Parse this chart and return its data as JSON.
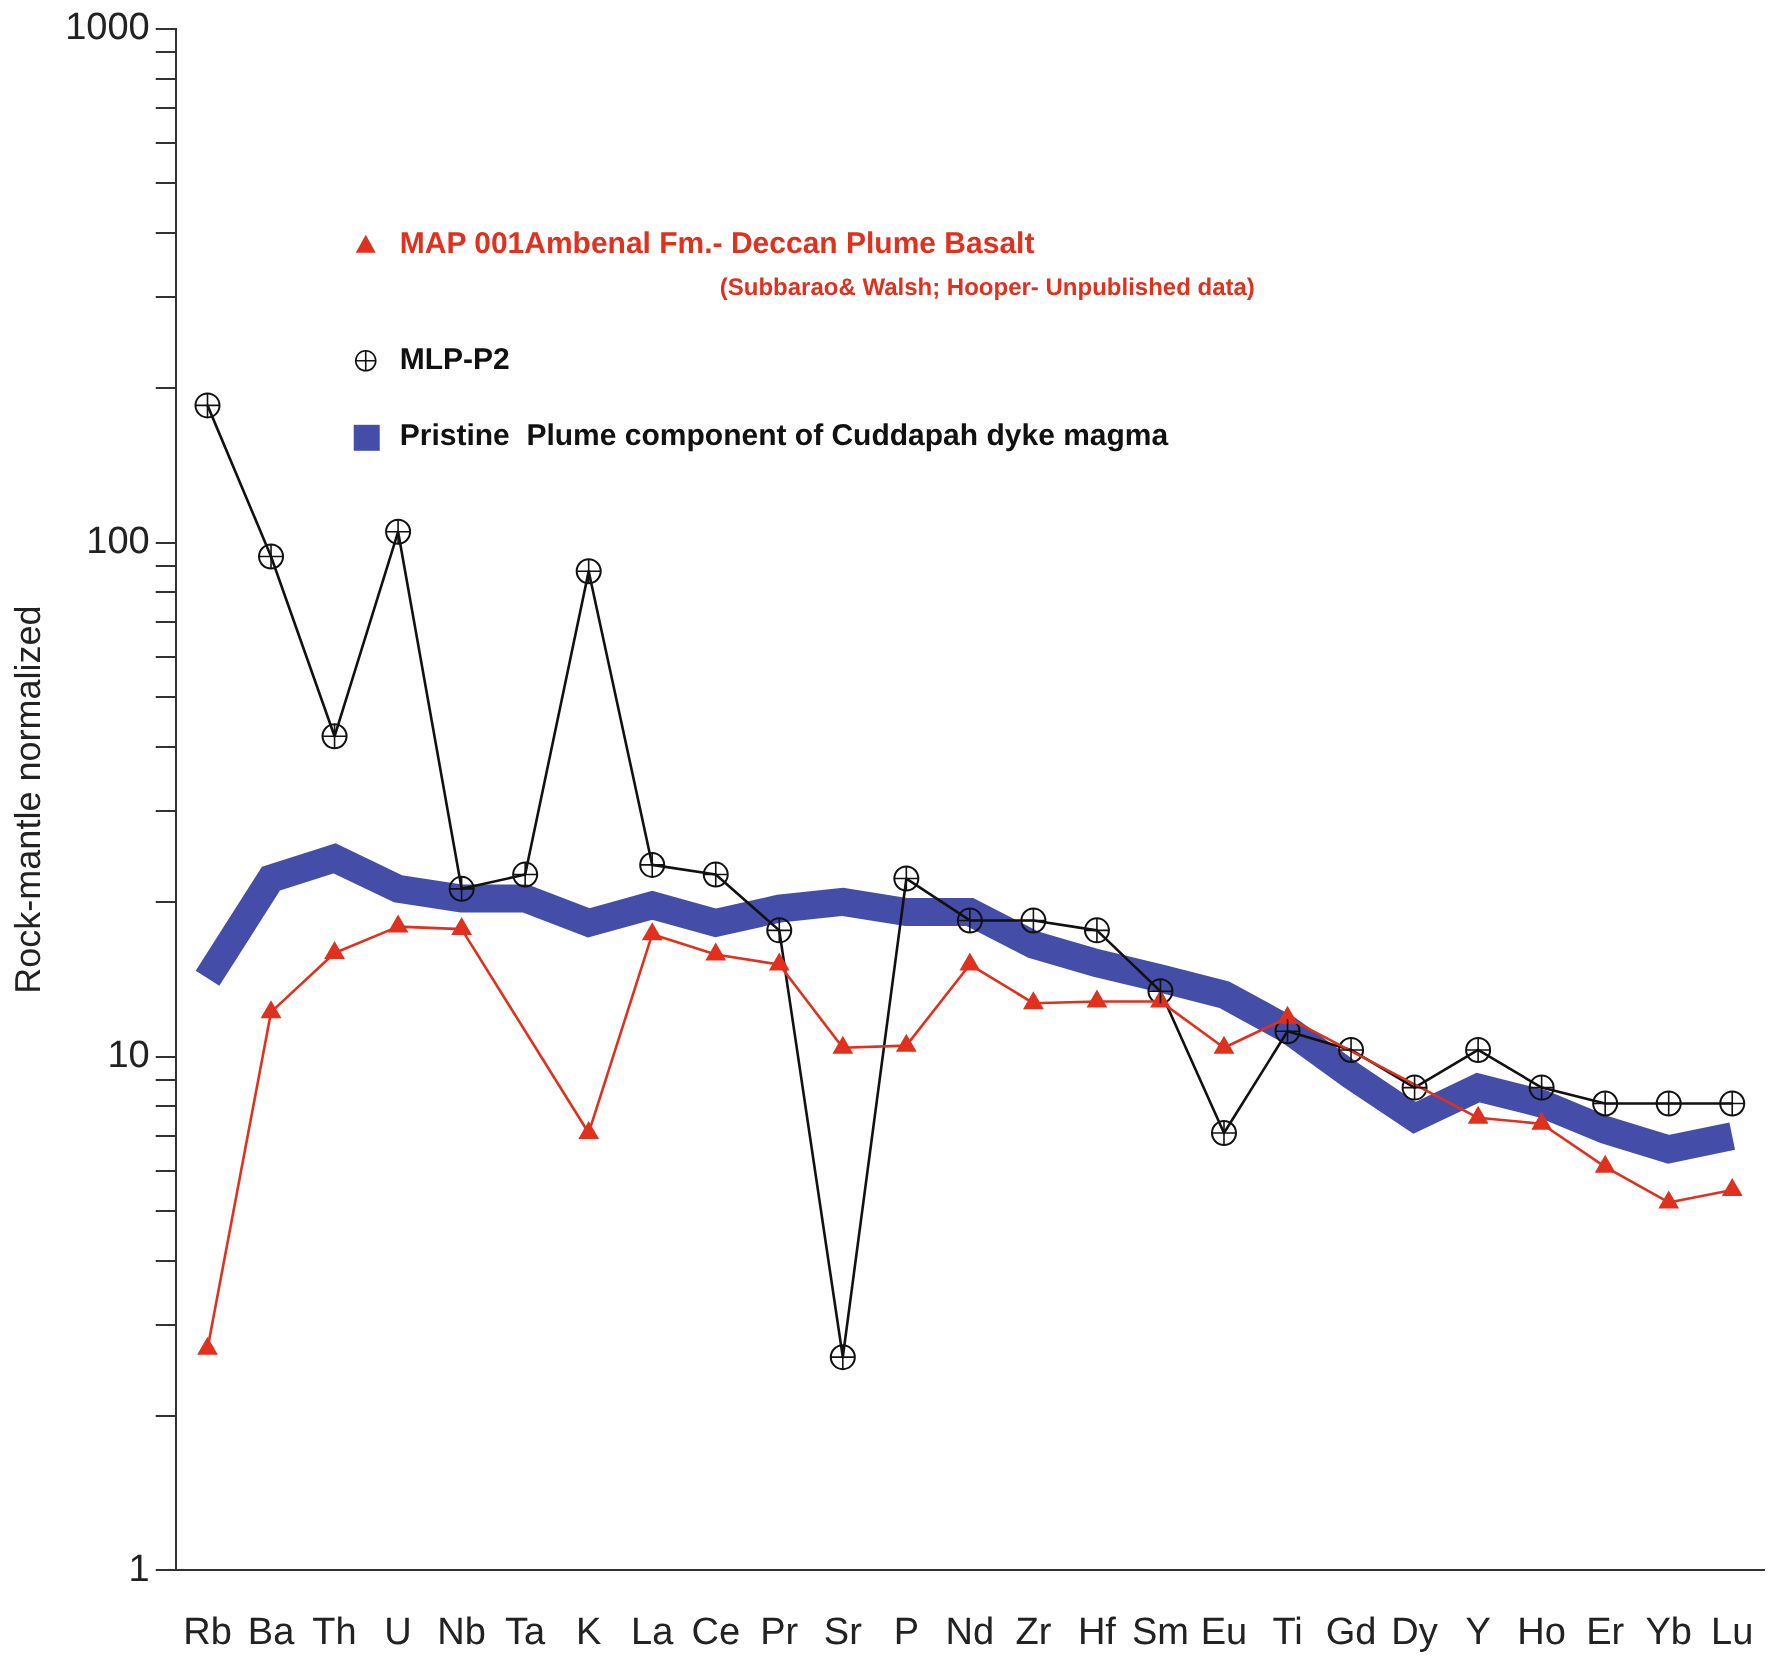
{
  "chart_data": {
    "type": "line",
    "ylabel": "Rock-mantle normalized",
    "log": "y",
    "ylim": [
      1,
      1000
    ],
    "yticks": [
      1,
      {
        "value": 2,
        "label": null
      },
      {
        "value": 3,
        "label": null
      },
      {
        "value": 4,
        "label": null
      },
      {
        "value": 5,
        "label": null
      },
      {
        "value": 6,
        "label": null
      },
      {
        "value": 7,
        "label": null
      },
      {
        "value": 8,
        "label": null
      },
      {
        "value": 9,
        "label": null
      },
      10,
      {
        "value": 20,
        "label": null
      },
      {
        "value": 30,
        "label": null
      },
      {
        "value": 40,
        "label": null
      },
      {
        "value": 50,
        "label": null
      },
      {
        "value": 60,
        "label": null
      },
      {
        "value": 70,
        "label": null
      },
      {
        "value": 80,
        "label": null
      },
      {
        "value": 90,
        "label": null
      },
      100,
      {
        "value": 200,
        "label": null
      },
      {
        "value": 300,
        "label": null
      },
      {
        "value": 400,
        "label": null
      },
      {
        "value": 500,
        "label": null
      },
      {
        "value": 600,
        "label": null
      },
      {
        "value": 700,
        "label": null
      },
      {
        "value": 800,
        "label": null
      },
      {
        "value": 900,
        "label": null
      },
      1000
    ],
    "categories": [
      "Rb",
      "Ba",
      "Th",
      "U",
      "Nb",
      "Ta",
      "K",
      "La",
      "Ce",
      "Pr",
      "Sr",
      "P",
      "Nd",
      "Zr",
      "Hf",
      "Sm",
      "Eu",
      "Ti",
      "Gd",
      "Dy",
      "Y",
      "Ho",
      "Er",
      "Yb",
      "Lu"
    ],
    "legend": "top",
    "grid": false,
    "annotations": [
      "(Subbarao& Walsh; Hooper- Unpublished data)"
    ],
    "series": [
      {
        "name": "Pristine  Plume component of Cuddapah dyke magma",
        "color": "#444ea8",
        "marker": "none",
        "values": [
          14.2,
          22.2,
          24.3,
          21.2,
          20.3,
          20.3,
          18.2,
          19.7,
          18.2,
          19.4,
          20,
          19.1,
          19.1,
          16.5,
          15.2,
          14.2,
          13.2,
          11.3,
          9.2,
          7.6,
          8.7,
          8.1,
          7.2,
          6.6,
          7.0
        ]
      },
      {
        "name": "MAP 001Ambenal Fm.- Deccan Plume Basalt",
        "color": "#e0301e",
        "marker": "triangle",
        "values": [
          2.7,
          12.2,
          15.9,
          17.9,
          17.7,
          null,
          7.1,
          17.3,
          15.8,
          15.1,
          10.4,
          10.5,
          15.1,
          12.7,
          12.8,
          12.8,
          10.4,
          11.9,
          null,
          null,
          7.6,
          7.4,
          6.1,
          5.2,
          5.5
        ]
      },
      {
        "name": "MLP-P2",
        "color": "#111111",
        "marker": "circle",
        "values": [
          185,
          94,
          42,
          105,
          21.2,
          22.6,
          88,
          23.6,
          22.6,
          17.6,
          2.6,
          22.2,
          18.4,
          18.4,
          17.6,
          13.4,
          7.1,
          11.2,
          10.3,
          8.7,
          10.3,
          8.7,
          8.1,
          8.1,
          8.1
        ]
      }
    ]
  }
}
